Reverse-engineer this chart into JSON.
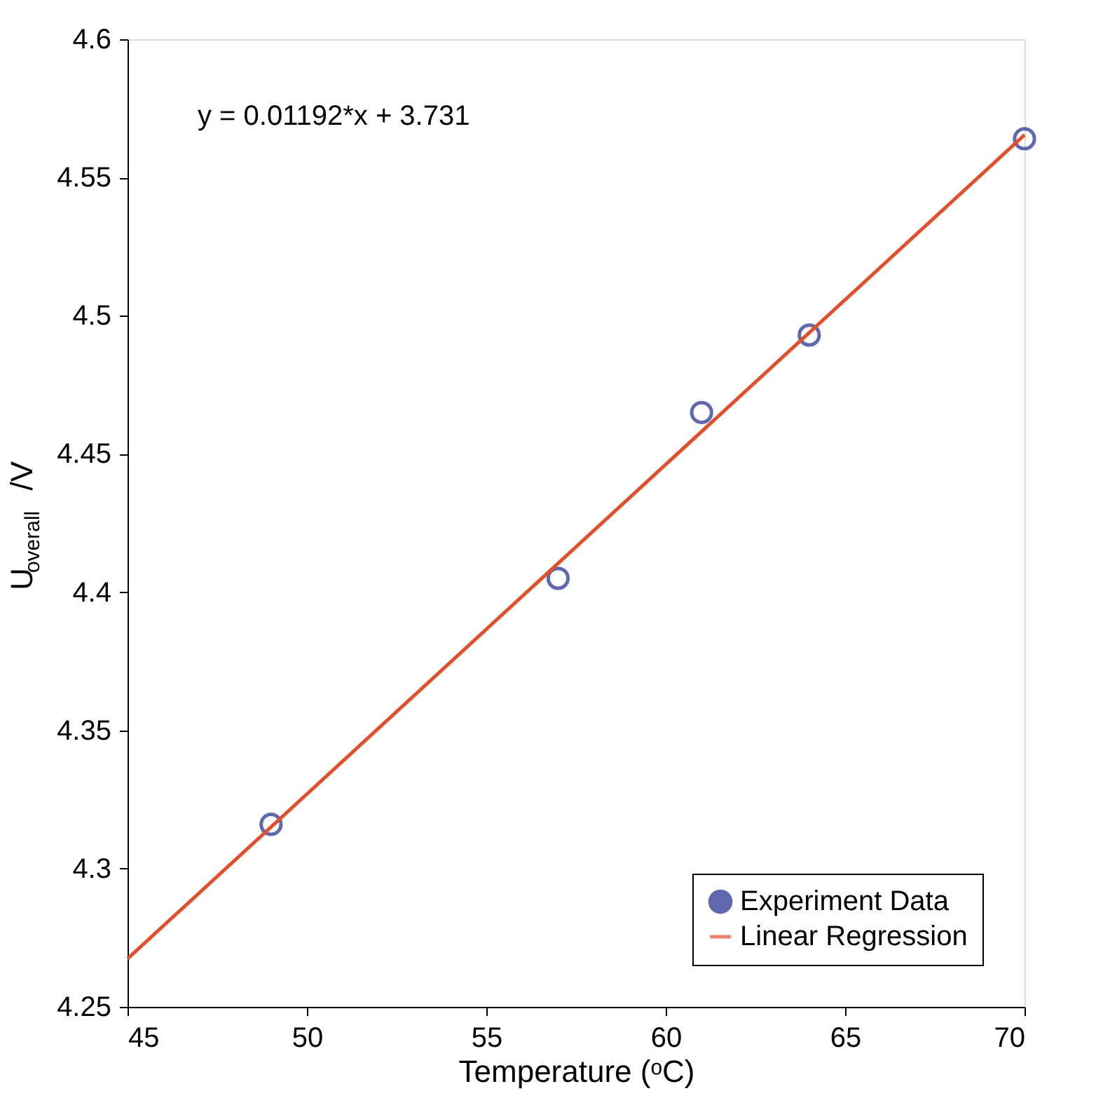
{
  "chart_data": {
    "type": "scatter",
    "xlabel": "Temperature (ᵒC)",
    "ylabel": "U$_{overall}$/V",
    "series": [
      {
        "name": "Experiment Data",
        "color": "#1f2a8c",
        "x": [
          49,
          57,
          61,
          64,
          70
        ],
        "values": [
          4.316,
          4.405,
          4.465,
          4.493,
          4.564
        ],
        "marker": "circle"
      },
      {
        "name": "Linear Regression",
        "type": "line",
        "color": "#e0502a",
        "x": [
          45,
          70
        ],
        "values": [
          4.2674,
          4.5654
        ],
        "line_style": "solid"
      }
    ],
    "annotations": [
      "y = 0.01192*x + 3.731"
    ],
    "xlim": [
      45,
      70
    ],
    "xticks": [
      45,
      50,
      55,
      60,
      65,
      70
    ],
    "ylim": [
      4.25,
      4.6
    ],
    "yticks": [
      4.25,
      {
        "value": 4.3,
        "label": "4.3"
      },
      4.35,
      {
        "value": 4.4,
        "label": "4.4"
      },
      4.45,
      {
        "value": 4.5,
        "label": "4.5"
      },
      4.55,
      {
        "value": 4.6,
        "label": "4.6"
      }
    ],
    "grid": false,
    "legend": "bottom right"
  }
}
